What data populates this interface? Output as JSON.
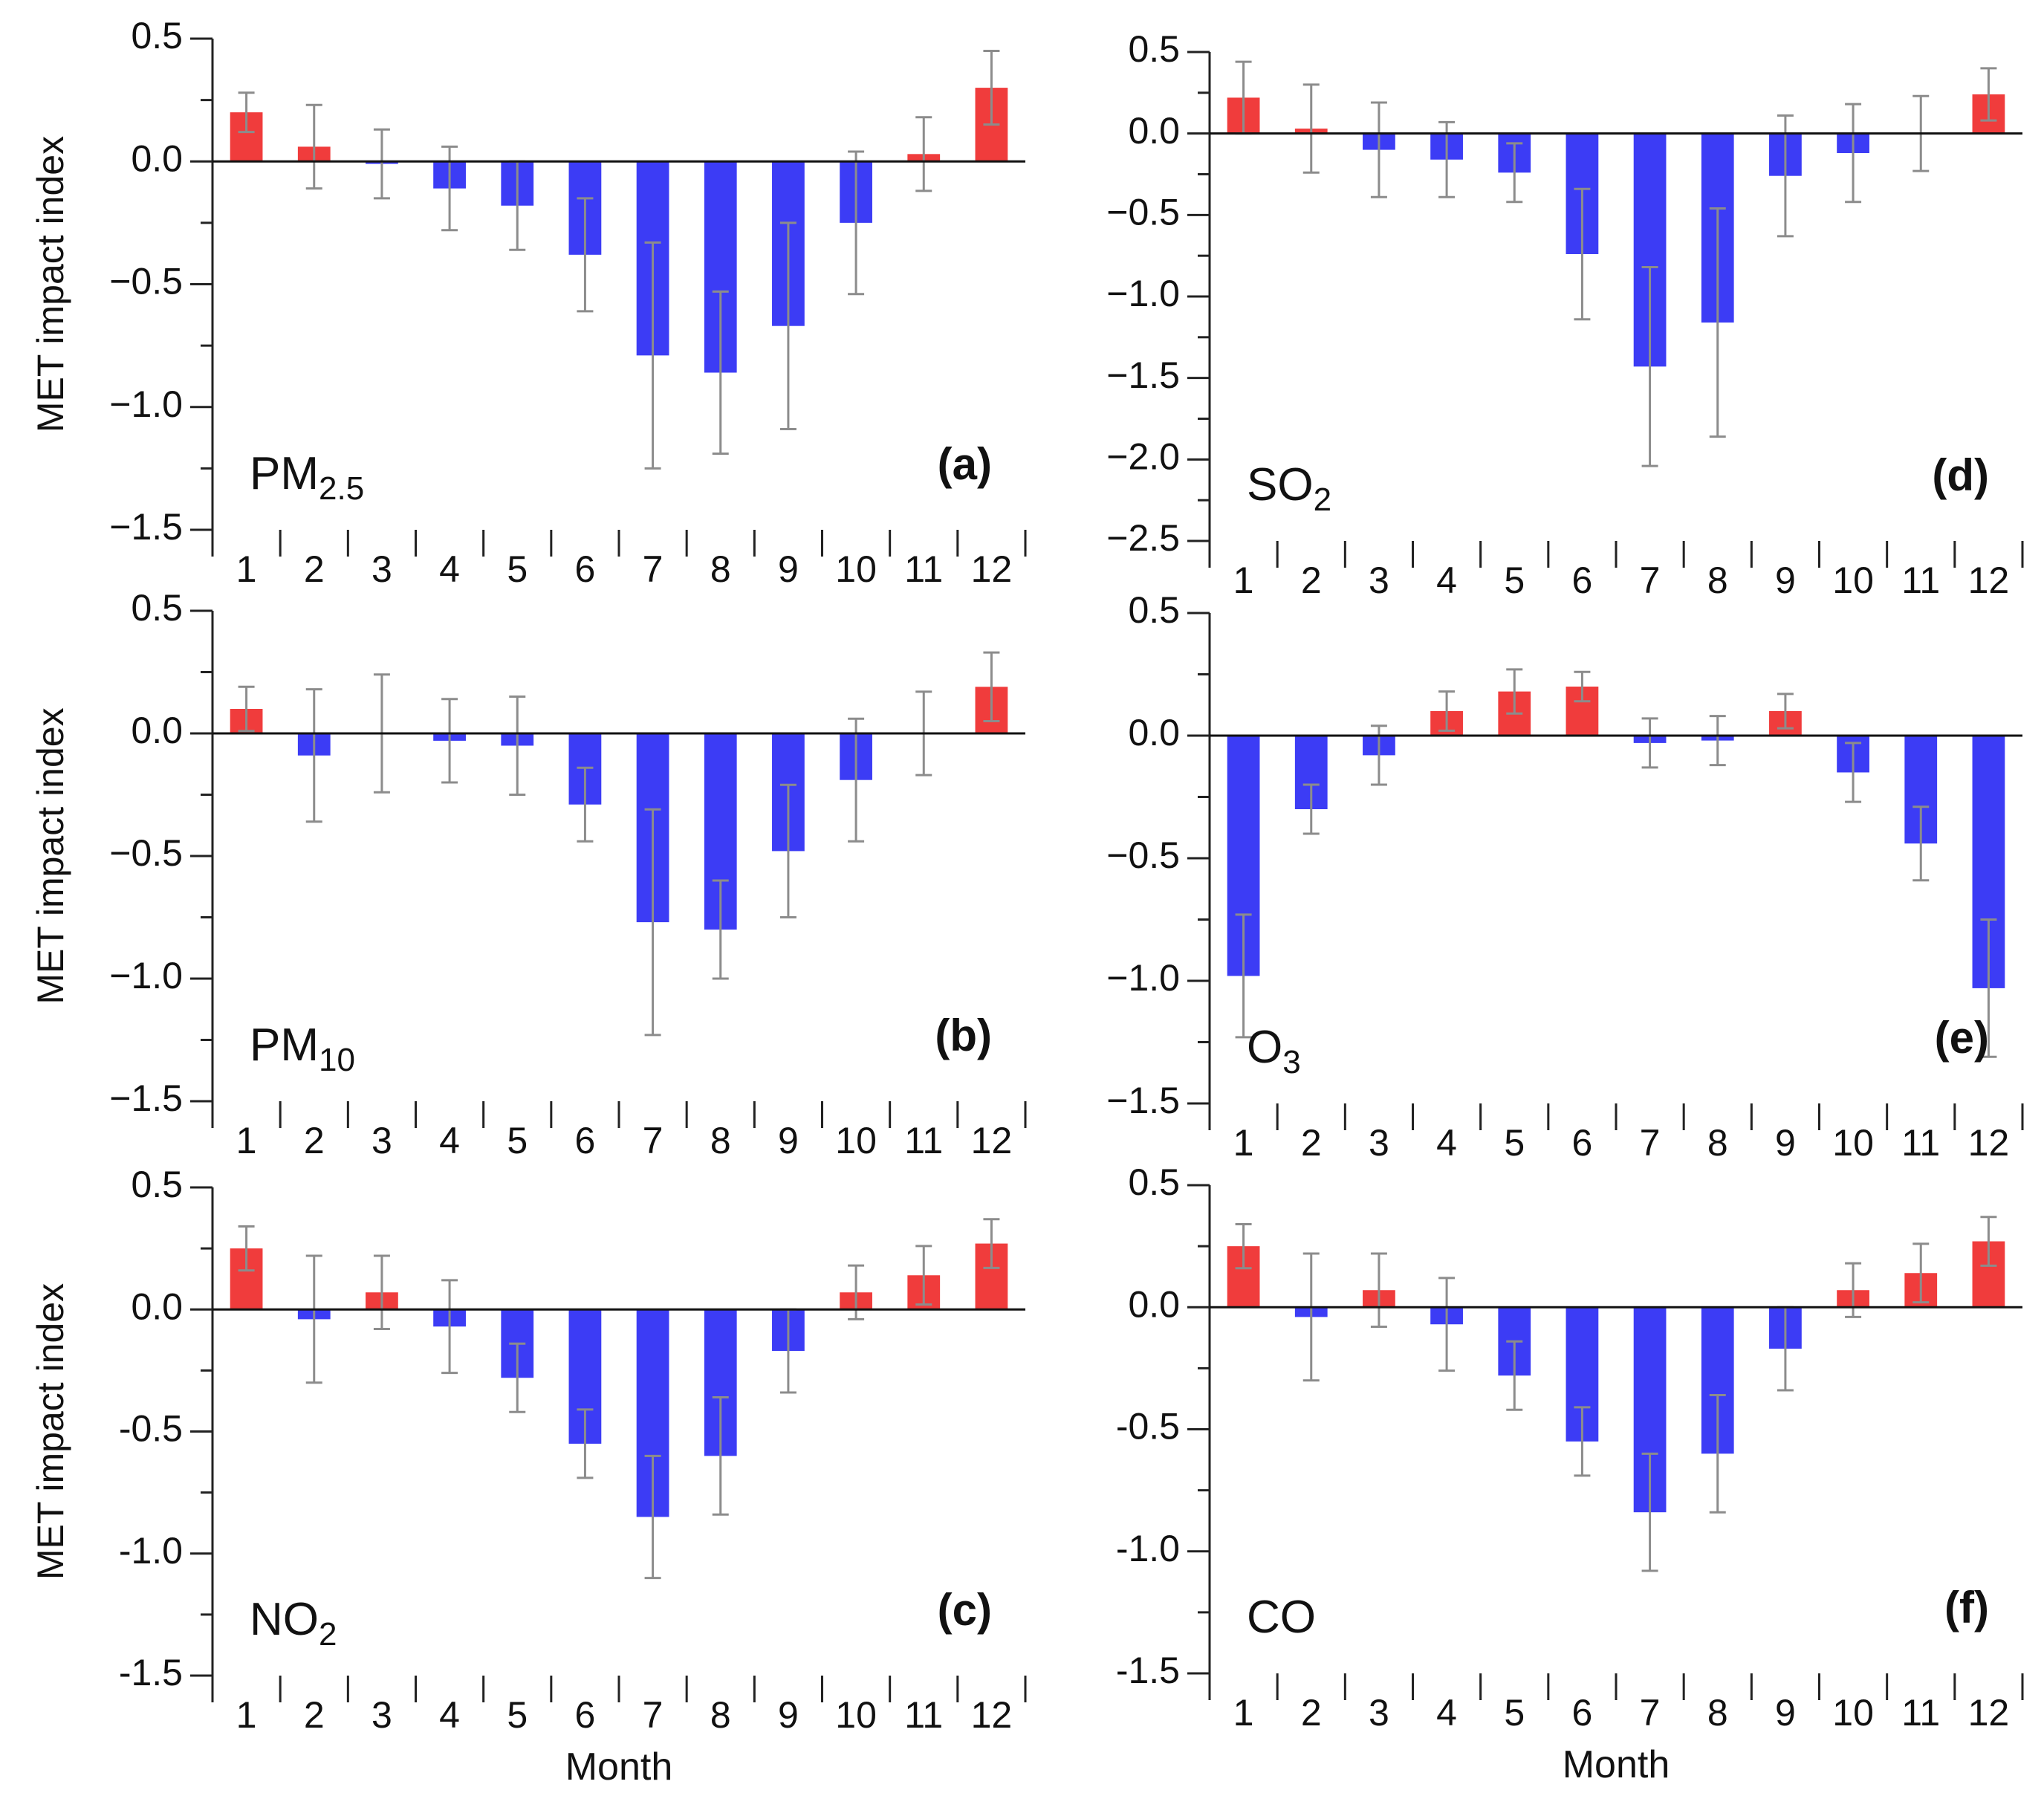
{
  "figure": {
    "common_ylabel": "MET impact index",
    "common_xlabel": "Month",
    "colors": {
      "positive": "#f03c3c",
      "negative": "#3c3cf5",
      "error_bar": "#8c8c8c",
      "axis": "#222222"
    }
  },
  "chart_data": [
    {
      "type": "bar",
      "panel": "(a)",
      "pollutant": {
        "base": "PM",
        "sub": "2.5"
      },
      "categories": [
        "1",
        "2",
        "3",
        "4",
        "5",
        "6",
        "7",
        "8",
        "9",
        "10",
        "11",
        "12"
      ],
      "values": [
        0.2,
        0.06,
        -0.01,
        -0.11,
        -0.18,
        -0.38,
        -0.79,
        -0.86,
        -0.67,
        -0.25,
        0.03,
        0.3
      ],
      "errors": [
        0.08,
        0.17,
        0.14,
        0.17,
        0.18,
        0.23,
        0.46,
        0.33,
        0.42,
        0.29,
        0.15,
        0.15
      ],
      "ylim": [
        -1.5,
        0.5
      ],
      "yticks": [
        0.5,
        0.0,
        -0.5,
        -1.0,
        -1.5
      ],
      "ytick_labels": [
        "0.5",
        "0.0",
        "−0.5",
        "−1.0",
        "−1.5"
      ],
      "ylabel": "MET impact index",
      "xlabel": ""
    },
    {
      "type": "bar",
      "panel": "(b)",
      "pollutant": {
        "base": "PM",
        "sub": "10"
      },
      "categories": [
        "1",
        "2",
        "3",
        "4",
        "5",
        "6",
        "7",
        "8",
        "9",
        "10",
        "11",
        "12"
      ],
      "values": [
        0.1,
        -0.09,
        0.0,
        -0.03,
        -0.05,
        -0.29,
        -0.77,
        -0.8,
        -0.48,
        -0.19,
        0.0,
        0.19
      ],
      "errors": [
        0.09,
        0.27,
        0.24,
        0.17,
        0.2,
        0.15,
        0.46,
        0.2,
        0.27,
        0.25,
        0.17,
        0.14
      ],
      "ylim": [
        -1.5,
        0.5
      ],
      "yticks": [
        0.5,
        0.0,
        -0.5,
        -1.0,
        -1.5
      ],
      "ytick_labels": [
        "0.5",
        "0.0",
        "−0.5",
        "−1.0",
        "−1.5"
      ],
      "ylabel": "MET impact index",
      "xlabel": ""
    },
    {
      "type": "bar",
      "panel": "(c)",
      "pollutant": {
        "base": "NO",
        "sub": "2"
      },
      "categories": [
        "1",
        "2",
        "3",
        "4",
        "5",
        "6",
        "7",
        "8",
        "9",
        "10",
        "11",
        "12"
      ],
      "values": [
        0.25,
        -0.04,
        0.07,
        -0.07,
        -0.28,
        -0.55,
        -0.85,
        -0.6,
        -0.17,
        0.07,
        0.14,
        0.27
      ],
      "errors": [
        0.09,
        0.26,
        0.15,
        0.19,
        0.14,
        0.14,
        0.25,
        0.24,
        0.17,
        0.11,
        0.12,
        0.1
      ],
      "ylim": [
        -1.5,
        0.5
      ],
      "yticks": [
        0.5,
        0.0,
        -0.5,
        -1.0,
        -1.5
      ],
      "ytick_labels": [
        "0.5",
        "0.0",
        "-0.5",
        "-1.0",
        "-1.5"
      ],
      "ylabel": "MET impact index",
      "xlabel": "Month"
    },
    {
      "type": "bar",
      "panel": "(d)",
      "pollutant": {
        "base": "SO",
        "sub": "2"
      },
      "categories": [
        "1",
        "2",
        "3",
        "4",
        "5",
        "6",
        "7",
        "8",
        "9",
        "10",
        "11",
        "12"
      ],
      "values": [
        0.22,
        0.03,
        -0.1,
        -0.16,
        -0.24,
        -0.74,
        -1.43,
        -1.16,
        -0.26,
        -0.12,
        0.0,
        0.24
      ],
      "errors": [
        0.22,
        0.27,
        0.29,
        0.23,
        0.18,
        0.4,
        0.61,
        0.7,
        0.37,
        0.3,
        0.23,
        0.16
      ],
      "ylim": [
        -2.5,
        0.5
      ],
      "yticks": [
        0.5,
        0.0,
        -0.5,
        -1.0,
        -1.5,
        -2.0,
        -2.5
      ],
      "ytick_labels": [
        "0.5",
        "0.0",
        "−0.5",
        "−1.0",
        "−1.5",
        "−2.0",
        "−2.5"
      ],
      "ylabel": "",
      "xlabel": ""
    },
    {
      "type": "bar",
      "panel": "(e)",
      "pollutant": {
        "base": "O",
        "sub": "3"
      },
      "categories": [
        "1",
        "2",
        "3",
        "4",
        "5",
        "6",
        "7",
        "8",
        "9",
        "10",
        "11",
        "12"
      ],
      "values": [
        -0.98,
        -0.3,
        -0.08,
        0.1,
        0.18,
        0.2,
        -0.03,
        -0.02,
        0.1,
        -0.15,
        -0.44,
        -1.03
      ],
      "errors": [
        0.25,
        0.1,
        0.12,
        0.08,
        0.09,
        0.06,
        0.1,
        0.1,
        0.07,
        0.12,
        0.15,
        0.28
      ],
      "ylim": [
        -1.5,
        0.5
      ],
      "yticks": [
        0.5,
        0.0,
        -0.5,
        -1.0,
        -1.5
      ],
      "ytick_labels": [
        "0.5",
        "0.0",
        "−0.5",
        "−1.0",
        "−1.5"
      ],
      "ylabel": "",
      "xlabel": ""
    },
    {
      "type": "bar",
      "panel": "(f)",
      "pollutant": {
        "base": "CO",
        "sub": ""
      },
      "categories": [
        "1",
        "2",
        "3",
        "4",
        "5",
        "6",
        "7",
        "8",
        "9",
        "10",
        "11",
        "12"
      ],
      "values": [
        0.25,
        -0.04,
        0.07,
        -0.07,
        -0.28,
        -0.55,
        -0.84,
        -0.6,
        -0.17,
        0.07,
        0.14,
        0.27
      ],
      "errors": [
        0.09,
        0.26,
        0.15,
        0.19,
        0.14,
        0.14,
        0.24,
        0.24,
        0.17,
        0.11,
        0.12,
        0.1
      ],
      "ylim": [
        -1.5,
        0.5
      ],
      "yticks": [
        0.5,
        0.0,
        -0.5,
        -1.0,
        -1.5
      ],
      "ytick_labels": [
        "0.5",
        "0.0",
        "-0.5",
        "-1.0",
        "-1.5"
      ],
      "ylabel": "",
      "xlabel": "Month"
    }
  ]
}
